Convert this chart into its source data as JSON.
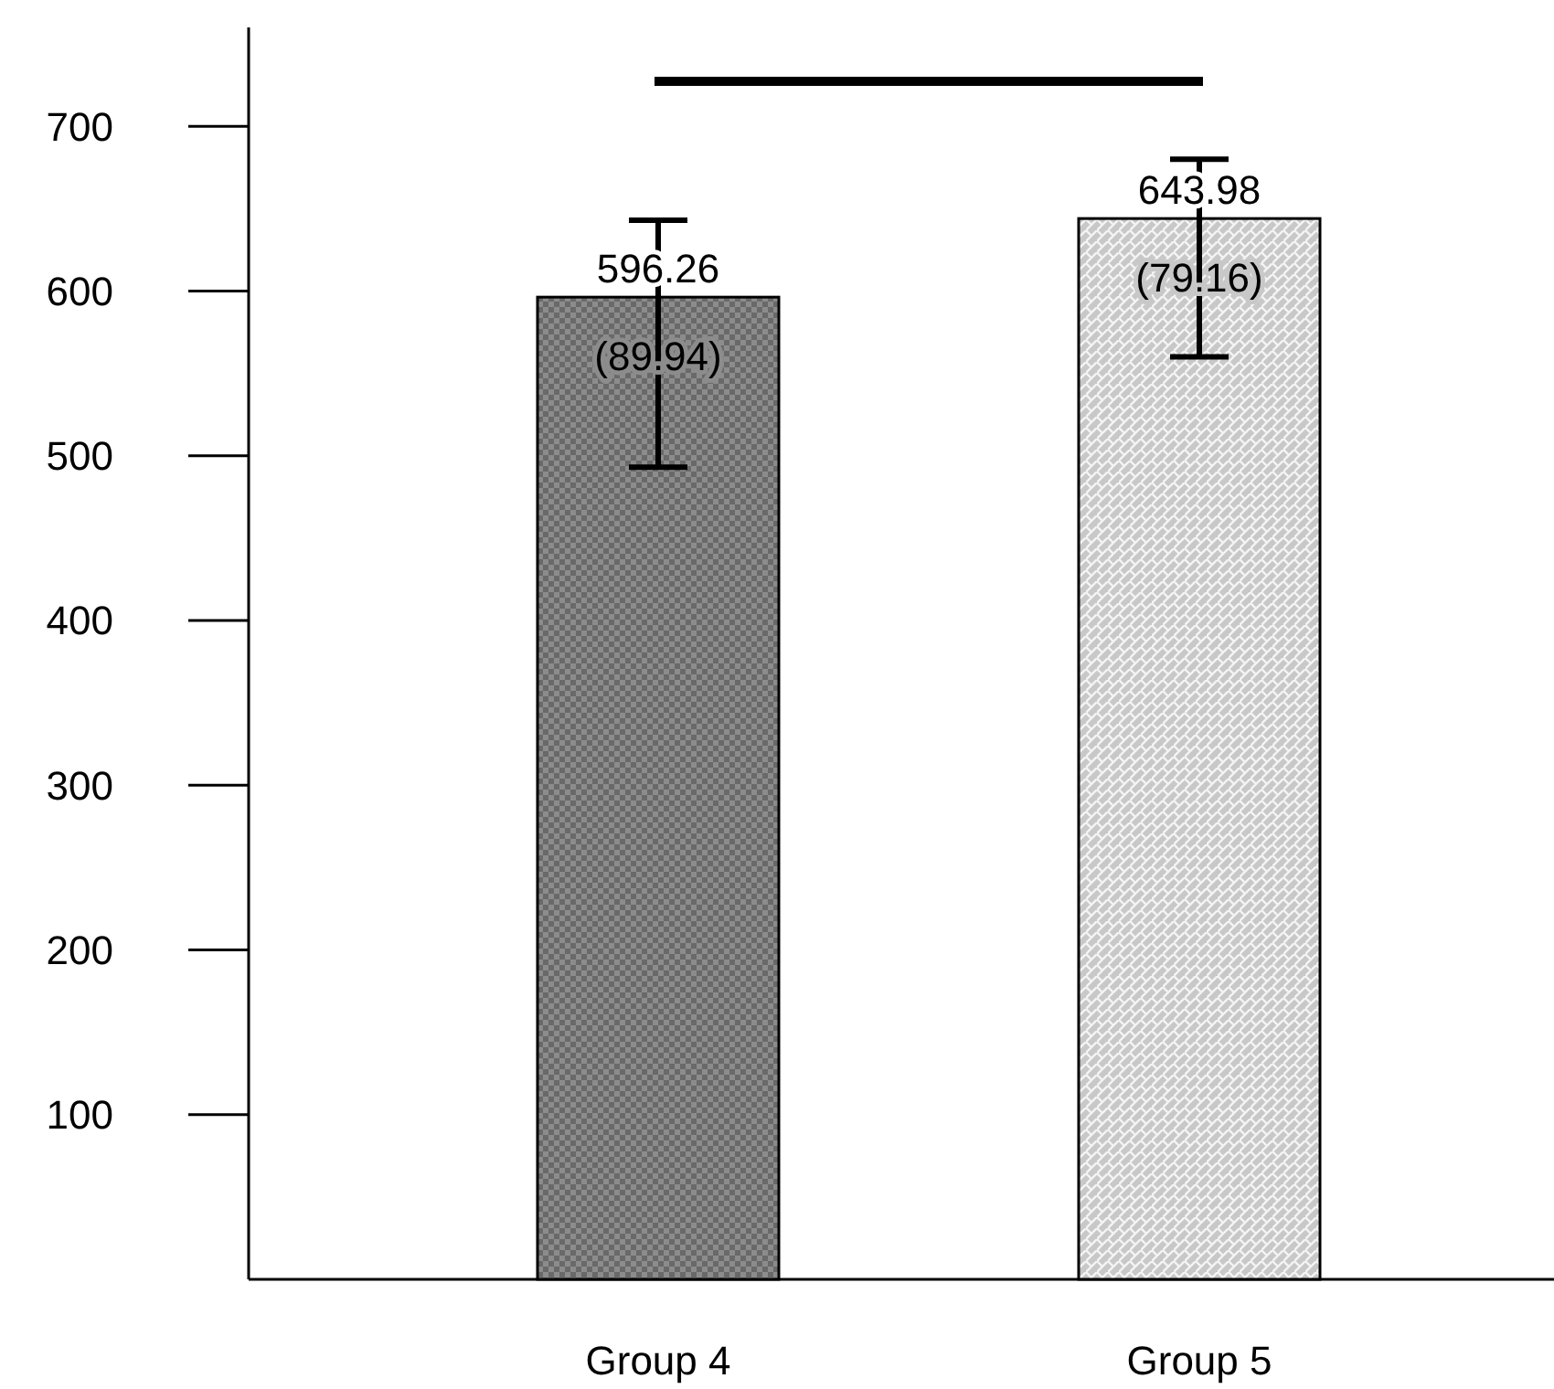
{
  "chart_data": {
    "type": "bar",
    "categories": [
      "Group 4",
      "Group 5"
    ],
    "values": [
      596.26,
      643.98
    ],
    "colors": [
      "#8c8c8c",
      "#c8c8c8"
    ],
    "errors": [
      [
        493,
        643
      ],
      [
        560,
        680
      ]
    ],
    "value_labels": [
      "596.26\n(89.94)",
      "643.98\n(79.16)"
    ],
    "ylim": [
      0,
      760
    ],
    "yticks": [
      100,
      200,
      300,
      400,
      500,
      600,
      700
    ],
    "grid": false
  }
}
